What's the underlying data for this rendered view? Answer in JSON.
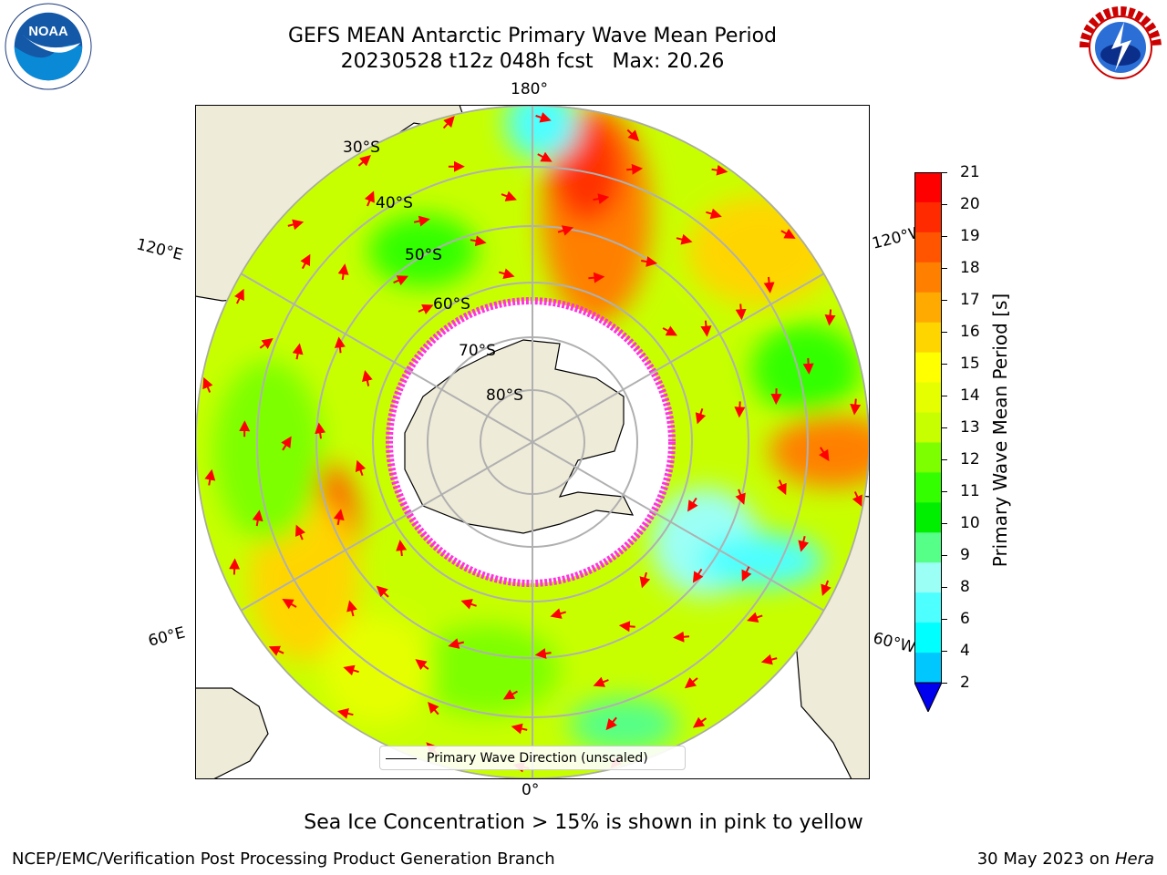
{
  "title": {
    "line1": "GEFS MEAN Antarctic Primary Wave Mean Period",
    "line2": "20230528 t12z 048h fcst   Max: 20.26"
  },
  "logos": {
    "left": {
      "name": "NOAA",
      "icon": "noaa-logo"
    },
    "right": {
      "name": "NATIONAL WEATHER SERVICE",
      "icon": "nws-logo"
    }
  },
  "map": {
    "projection": "south-polar-stereographic",
    "longitude_labels": {
      "top": "180°",
      "bottom": "0°",
      "upper_left": "120°E",
      "upper_right": "120°W",
      "lower_left": "60°E",
      "lower_right": "60°W"
    },
    "latitude_labels": [
      "30°S",
      "40°S",
      "50°S",
      "60°S",
      "70°S",
      "80°S"
    ],
    "colors": {
      "land": "#efebd9",
      "ice_free_no_data": "#ffffff",
      "arrows": "#ff0000",
      "ice_edge": "#ff33dd",
      "grid": "#b0b0b0"
    }
  },
  "legend": {
    "label": "Primary Wave Direction (unscaled)"
  },
  "colorbar": {
    "label": "Primary Wave Mean Period [s]",
    "ticks": [
      "21",
      "20",
      "19",
      "18",
      "17",
      "16",
      "15",
      "14",
      "13",
      "12",
      "11",
      "10",
      "9",
      "8",
      "6",
      "4",
      "2"
    ],
    "colors": [
      "#ff0000",
      "#ff2a00",
      "#ff5500",
      "#ff8000",
      "#ffaa00",
      "#ffd500",
      "#ffff00",
      "#e6ff00",
      "#c8ff00",
      "#7dff00",
      "#33ff00",
      "#00ee00",
      "#55ff88",
      "#9cfff5",
      "#4dffff",
      "#00ffff",
      "#00c8ff",
      "#0077ff"
    ],
    "extend_color": "#0000ee"
  },
  "bottom_note": "Sea Ice Concentration > 15% is shown in pink to yellow",
  "footer": {
    "left": "NCEP/EMC/Verification Post Processing Product Generation Branch",
    "right_date": "30 May 2023 on ",
    "right_machine": "Hera"
  }
}
